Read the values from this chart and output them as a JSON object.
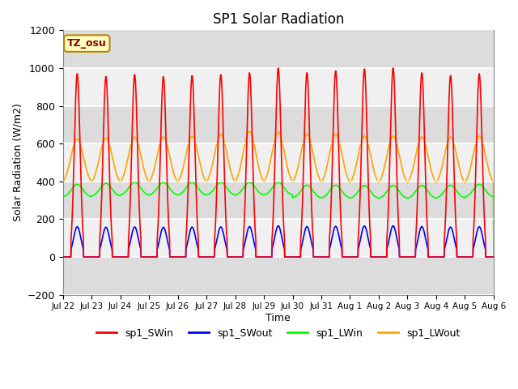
{
  "title": "SP1 Solar Radiation",
  "ylabel": "Solar Radiation (W/m2)",
  "xlabel": "Time",
  "ylim": [
    -200,
    1200
  ],
  "yticks": [
    -200,
    0,
    200,
    400,
    600,
    800,
    1000,
    1200
  ],
  "tz_label": "TZ_osu",
  "series": {
    "sp1_SWin": {
      "color": "#FF0000",
      "lw": 1.2
    },
    "sp1_SWout": {
      "color": "#0000FF",
      "lw": 1.2
    },
    "sp1_LWin": {
      "color": "#00FF00",
      "lw": 1.2
    },
    "sp1_LWout": {
      "color": "#FFA500",
      "lw": 1.2
    }
  },
  "n_days": 15,
  "bg_band_colors": [
    "#DCDCDC",
    "#F0F0F0"
  ],
  "plot_bg": "#FFFFFF",
  "grid_color": "#FFFFFF"
}
